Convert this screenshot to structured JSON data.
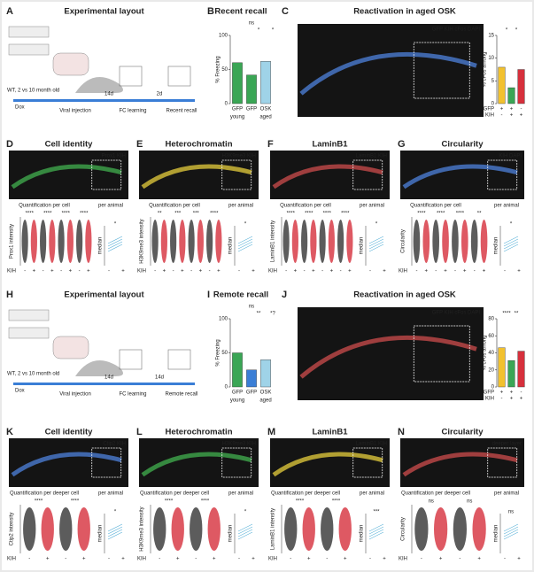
{
  "panels": [
    {
      "letter": "A",
      "title": "Experimental layout",
      "labels": [
        "WT, 2 vs 10 month old",
        "Dox",
        "Viral injection",
        "14d",
        "FC learning",
        "2d",
        "Recent recall"
      ]
    },
    {
      "letter": "B",
      "title": "Recent recall",
      "chart": {
        "type": "bar",
        "ylabel": "% Freezing",
        "categories": [
          "GFP",
          "GFP",
          "OSK"
        ],
        "groups": [
          "young",
          "aged"
        ],
        "values": [
          60,
          42,
          62
        ],
        "colors": [
          "#3aa655",
          "#3aa655",
          "#9fd3e8"
        ],
        "ylim": [
          0,
          100
        ],
        "yticks": [
          0,
          50,
          100
        ],
        "sig": [
          "ns",
          "*",
          "*"
        ]
      }
    },
    {
      "letter": "C",
      "title": "Reactivation in aged OSK",
      "channels": "GFP KIH cFos DAPI",
      "chart": {
        "type": "bar",
        "ylabel": "% cFos among",
        "rows": [
          {
            "name": "GFP",
            "marks": [
              "+",
              "+",
              "-"
            ]
          },
          {
            "name": "KIH",
            "marks": [
              "-",
              "+",
              "+"
            ]
          }
        ],
        "values": [
          8,
          3.5,
          7.5
        ],
        "colors": [
          "#f2c12e",
          "#3aa655",
          "#d6303c"
        ],
        "ylim": [
          0,
          15
        ],
        "yticks": [
          0,
          5,
          10,
          15
        ],
        "sig": [
          "*",
          "*"
        ]
      }
    },
    {
      "letter": "D",
      "title": "Cell identity",
      "channels": "Prox1 KIH",
      "sub": [
        "Quantification per cell",
        "per animal"
      ],
      "ylabel": "Prox1 intensity",
      "median": "median",
      "xname": "KIH",
      "xmarks": [
        "-",
        "+"
      ],
      "sig": [
        "****",
        "****",
        "****",
        "****",
        "*"
      ]
    },
    {
      "letter": "E",
      "title": "Heterochromatin",
      "channels": "H3K9me3 KIH",
      "sub": [
        "Quantification per cell",
        "per animal"
      ],
      "ylabel": "H3K9me3 intensity",
      "median": "median",
      "xname": "KIH",
      "xmarks": [
        "-",
        "+"
      ],
      "sig": [
        "**",
        "***",
        "***",
        "****",
        "*"
      ]
    },
    {
      "letter": "F",
      "title": "LaminB1",
      "channels": "LaminB1 KIH",
      "sub": [
        "Quantification per cell",
        "per animal"
      ],
      "ylabel": "LaminB1 intensity",
      "median": "median",
      "xname": "KIH",
      "xmarks": [
        "-",
        "+"
      ],
      "sig": [
        "****",
        "****",
        "****",
        "****",
        "*"
      ]
    },
    {
      "letter": "G",
      "title": "Circularity",
      "channels": "KIH DAPI",
      "sub": [
        "Quantification per cell",
        "per animal"
      ],
      "ylabel": "Circularity",
      "median": "median",
      "xname": "KIH",
      "xmarks": [
        "-",
        "+"
      ],
      "sig": [
        "****",
        "****",
        "****",
        "**",
        "*"
      ]
    },
    {
      "letter": "H",
      "title": "Experimental layout",
      "labels": [
        "WT, 2 vs 10 month old",
        "Dox",
        "Viral injection",
        "14d",
        "FC learning",
        "14d",
        "Remote recall"
      ]
    },
    {
      "letter": "I",
      "title": "Remote recall",
      "chart": {
        "type": "bar",
        "ylabel": "% Freezing",
        "categories": [
          "GFP",
          "GFP",
          "OSK"
        ],
        "groups": [
          "young",
          "aged"
        ],
        "values": [
          50,
          25,
          40
        ],
        "colors": [
          "#3aa655",
          "#3a7ed6",
          "#9fd3e8"
        ],
        "ylim": [
          0,
          100
        ],
        "yticks": [
          0,
          50,
          100
        ],
        "sig": [
          "ns",
          "**",
          "*?"
        ]
      }
    },
    {
      "letter": "J",
      "title": "Reactivation in aged OSK",
      "channels": "GFP KIH cFos DAPI",
      "chart": {
        "type": "bar",
        "ylabel": "% cFos among",
        "rows": [
          {
            "name": "GFP",
            "marks": [
              "+",
              "+",
              "-"
            ]
          },
          {
            "name": "KIH",
            "marks": [
              "-",
              "+",
              "+"
            ]
          }
        ],
        "values": [
          46,
          31,
          42
        ],
        "colors": [
          "#f2c12e",
          "#3aa655",
          "#d6303c"
        ],
        "ylim": [
          0,
          80
        ],
        "yticks": [
          0,
          20,
          40,
          60,
          80
        ],
        "sig": [
          "****",
          "**"
        ]
      }
    },
    {
      "letter": "K",
      "title": "Cell identity",
      "channels": "Ctip2 KIH",
      "sub": [
        "Quantification per deeper cell",
        "per animal"
      ],
      "ylabel": "Ctip2 intensity",
      "median": "median",
      "xname": "KIH",
      "xmarks": [
        "-",
        "+"
      ],
      "sig": [
        "****",
        "****",
        "*"
      ]
    },
    {
      "letter": "L",
      "title": "Heterochromatin",
      "channels": "H3K9me3 KIH",
      "sub": [
        "Quantification per deeper cell",
        "per animal"
      ],
      "ylabel": "H3K9me3 intensity",
      "median": "median",
      "xname": "KIH",
      "xmarks": [
        "-",
        "+"
      ],
      "sig": [
        "****",
        "****",
        "*"
      ]
    },
    {
      "letter": "M",
      "title": "LaminB1",
      "channels": "LaminB1 KIH",
      "sub": [
        "Quantification per deeper cell",
        "per animal"
      ],
      "ylabel": "LaminB1 intensity",
      "median": "median",
      "xname": "KIH",
      "xmarks": [
        "-",
        "+"
      ],
      "sig": [
        "****",
        "****",
        "***"
      ]
    },
    {
      "letter": "N",
      "title": "Circularity",
      "channels": "deeper layer",
      "sub": [
        "Quantification per deeper cell",
        "per animal"
      ],
      "ylabel": "Circularity",
      "median": "median",
      "xname": "KIH",
      "xmarks": [
        "-",
        "+"
      ],
      "sig": [
        "ns",
        "ns",
        "ns"
      ]
    }
  ]
}
